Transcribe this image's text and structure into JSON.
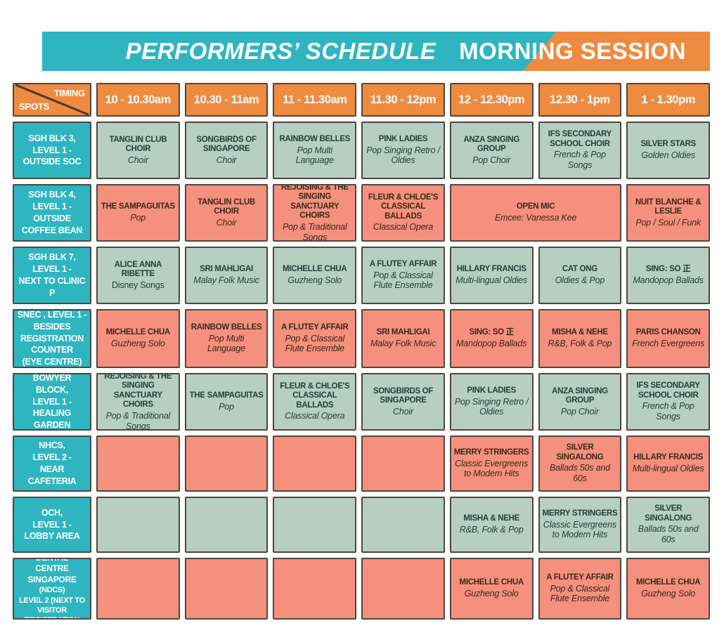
{
  "banner": {
    "left": "PERFORMERS’ SCHEDULE",
    "right": "MORNING SESSION"
  },
  "header": {
    "corner_top": "TIMING",
    "corner_bottom": "SPOTS",
    "times": [
      "10 - 10.30am",
      "10.30 - 11am",
      "11 - 11.30am",
      "11.30 - 12pm",
      "12 - 12.30pm",
      "12.30 - 1pm",
      "1 - 1.30pm"
    ]
  },
  "colors": {
    "teal": "#2fb5c0",
    "orange": "#ee8b41",
    "salmon": "#f5907e",
    "sage": "#b7cec3",
    "border": "#4e473f",
    "green-text": "#20403a",
    "brown-text": "#3c2716"
  },
  "rows": [
    {
      "spot_lines": [
        "SGH BLK 3,",
        "LEVEL 1 -",
        "OUTSIDE SOC"
      ],
      "tone": "green",
      "cells": [
        {
          "name": "TANGLIN CLUB CHOIR",
          "genre": "Choir"
        },
        {
          "name": "SONGBIRDS OF SINGAPORE",
          "genre": "Choir"
        },
        {
          "name": "RAINBOW BELLES",
          "genre": "Pop Multi Language"
        },
        {
          "name": "PINK LADIES",
          "genre": "Pop Singing Retro / Oldies"
        },
        {
          "name": "ANZA SINGING GROUP",
          "genre": "Pop Choir"
        },
        {
          "name": "IFS SECONDARY SCHOOL CHOIR",
          "genre": "French & Pop Songs"
        },
        {
          "name": "SILVER STARS",
          "genre": "Golden Oldies"
        }
      ]
    },
    {
      "spot_lines": [
        "SGH BLK 4,",
        "LEVEL 1 - OUTSIDE",
        "COFFEE BEAN"
      ],
      "tone": "salmon",
      "cells": [
        {
          "name": "THE SAMPAGUITAS",
          "genre": "Pop"
        },
        {
          "name": "TANGLIN CLUB CHOIR",
          "genre": "Choir"
        },
        {
          "name": "REJOISING & THE SINGING SANCTUARY CHOIRS",
          "genre": "Pop & Traditional Songs"
        },
        {
          "name": "FLEUR & CHLOE'S CLASSICAL BALLADS",
          "genre": "Classical Opera"
        },
        {
          "name": "OPEN MIC",
          "genre": "Emcee: Vanessa Kee",
          "span": 2
        },
        {
          "name": "NUIT BLANCHE & LESLIE",
          "genre": "Pop / Soul / Funk"
        }
      ]
    },
    {
      "spot_lines": [
        "SGH BLK 7,",
        "LEVEL 1 -",
        "NEXT TO CLINIC P"
      ],
      "tone": "green",
      "cells": [
        {
          "name": "ALICE ANNA RIBETTE",
          "genre": "Disney Songs",
          "genre_upright": true
        },
        {
          "name": "SRI MAHLIGAI",
          "genre": "Malay Folk Music"
        },
        {
          "name": "MICHELLE CHUA",
          "genre": "Guzheng Solo"
        },
        {
          "name": "A FLUTEY AFFAIR",
          "genre": "Pop & Classical Flute Ensemble"
        },
        {
          "name": "HILLARY FRANCIS",
          "genre": "Multi-lingual Oldies"
        },
        {
          "name": "CAT ONG",
          "genre": "Oldies & Pop"
        },
        {
          "name": "SING: SO 正",
          "genre": "Mandopop Ballads"
        }
      ]
    },
    {
      "spot_lines": [
        "SNEC , LEVEL 1 -",
        "BESIDES",
        "REGISTRATION",
        "COUNTER",
        "(EYE CENTRE)"
      ],
      "tone": "salmon",
      "cells": [
        {
          "name": "MICHELLE CHUA",
          "genre": "Guzheng Solo"
        },
        {
          "name": "RAINBOW BELLES",
          "genre": "Pop Multi Language"
        },
        {
          "name": "A FLUTEY AFFAIR",
          "genre": "Pop & Classical Flute Ensemble"
        },
        {
          "name": "SRI MAHLIGAI",
          "genre": "Malay Folk Music"
        },
        {
          "name": "SING: SO 正",
          "genre": "Mandopop Ballads"
        },
        {
          "name": "MISHA & NEHE",
          "genre": "R&B, Folk & Pop"
        },
        {
          "name": "PARIS CHANSON",
          "genre": "French Evergreens"
        }
      ]
    },
    {
      "spot_lines": [
        "BOWYER BLOCK,",
        "LEVEL 1 -",
        "HEALING GARDEN"
      ],
      "tone": "green",
      "cells": [
        {
          "name": "REJOISING & THE SINGING SANCTUARY CHOIRS",
          "genre": "Pop & Traditional Songs"
        },
        {
          "name": "THE SAMPAGUITAS",
          "genre": "Pop"
        },
        {
          "name": "FLEUR & CHLOE'S CLASSICAL BALLADS",
          "genre": "Classical Opera"
        },
        {
          "name": "SONGBIRDS OF SINGAPORE",
          "genre": "Choir"
        },
        {
          "name": "PINK LADIES",
          "genre": "Pop Singing Retro / Oldies"
        },
        {
          "name": "ANZA SINGING GROUP",
          "genre": "Pop Choir"
        },
        {
          "name": "IFS SECONDARY SCHOOL CHOIR",
          "genre": "French & Pop Songs"
        }
      ]
    },
    {
      "spot_lines": [
        "NHCS,",
        "LEVEL 2 -",
        "NEAR CAFETERIA"
      ],
      "tone": "salmon",
      "cells": [
        {},
        {},
        {},
        {},
        {
          "name": "MERRY STRINGERS",
          "genre": "Classic Evergreens to Modern Hits"
        },
        {
          "name": "SILVER SINGALONG",
          "genre": "Ballads 50s and 60s"
        },
        {
          "name": "HILLARY FRANCIS",
          "genre": "Multi-lingual Oldies"
        }
      ]
    },
    {
      "spot_lines": [
        "OCH,",
        "LEVEL 1 -",
        "LOBBY AREA"
      ],
      "tone": "green",
      "cells": [
        {},
        {},
        {},
        {},
        {
          "name": "MISHA & NEHE",
          "genre": "R&B, Folk & Pop"
        },
        {
          "name": "MERRY STRINGERS",
          "genre": "Classic Evergreens to Modern Hits"
        },
        {
          "name": "SILVER SINGALONG",
          "genre": "Ballads 50s and 60s"
        }
      ]
    },
    {
      "spot_lines": [
        "NATIONAL DENTAL",
        "CENTRE SINGAPORE",
        "(NDCS)",
        "LEVEL 2 (NEXT TO VISITOR",
        "REGISTRATION KIOSK)"
      ],
      "spot_small": true,
      "tone": "salmon",
      "cells": [
        {},
        {},
        {},
        {},
        {
          "name": "MICHELLE CHUA",
          "genre": "Guzheng Solo"
        },
        {
          "name": "A FLUTEY AFFAIR",
          "genre": "Pop & Classical Flute Ensemble"
        },
        {
          "name": "MICHELLE CHUA",
          "genre": "Guzheng Solo"
        }
      ]
    }
  ]
}
